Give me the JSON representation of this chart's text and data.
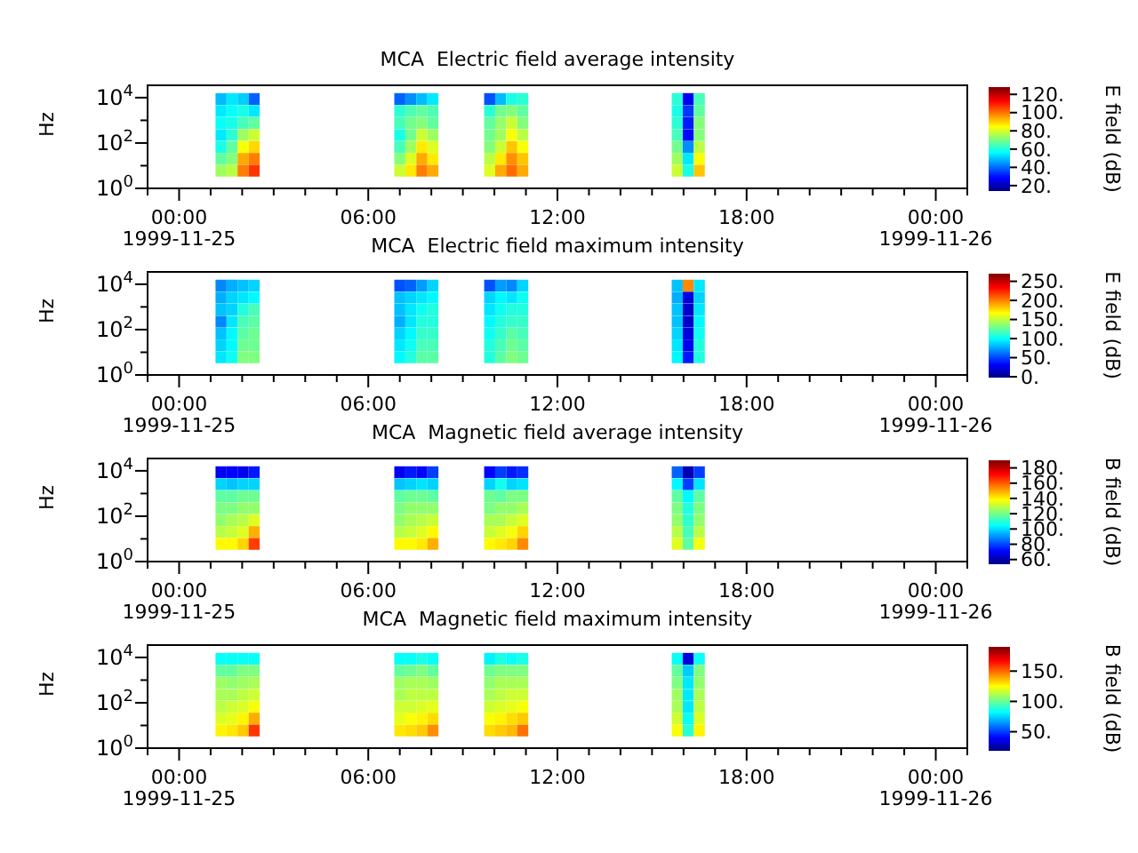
{
  "chart_data": [
    {
      "type": "heatmap",
      "title": "MCA  Electric field average intensity",
      "ylabel": "Hz",
      "clabel": "E field (dB)",
      "log": "y",
      "x": [
        1.33,
        1.68,
        2.03,
        2.38,
        2.73,
        6.65,
        7.0,
        7.35,
        7.7,
        8.05,
        8.4,
        9.5,
        9.85,
        10.2,
        10.55,
        10.9,
        11.25,
        15.45,
        15.8,
        16.15,
        16.5
      ],
      "y": [
        8710,
        2570,
        760,
        224,
        66,
        20,
        6
      ],
      "xlim": [
        -1,
        25
      ],
      "xticks": [
        {
          "value": -1,
          "label": null
        },
        {
          "value": 0,
          "label": "00:00\n1999-11-25"
        },
        {
          "value": 1,
          "label": null
        },
        {
          "value": 2,
          "label": null
        },
        {
          "value": 3,
          "label": null
        },
        {
          "value": 4,
          "label": null
        },
        {
          "value": 5,
          "label": null
        },
        {
          "value": 6,
          "label": "06:00"
        },
        {
          "value": 7,
          "label": null
        },
        {
          "value": 8,
          "label": null
        },
        {
          "value": 9,
          "label": null
        },
        {
          "value": 10,
          "label": null
        },
        {
          "value": 11,
          "label": null
        },
        {
          "value": 12,
          "label": "12:00"
        },
        {
          "value": 13,
          "label": null
        },
        {
          "value": 14,
          "label": null
        },
        {
          "value": 15,
          "label": null
        },
        {
          "value": 16,
          "label": null
        },
        {
          "value": 17,
          "label": null
        },
        {
          "value": 18,
          "label": "18:00"
        },
        {
          "value": 19,
          "label": null
        },
        {
          "value": 20,
          "label": null
        },
        {
          "value": 21,
          "label": null
        },
        {
          "value": 22,
          "label": null
        },
        {
          "value": 23,
          "label": null
        },
        {
          "value": 24,
          "label": "00:00\n1999-11-26"
        },
        {
          "value": 25,
          "label": null
        }
      ],
      "ylim": [
        1,
        35000
      ],
      "yticks": [
        {
          "value": 1,
          "label": "10$^{0}$"
        },
        {
          "value": 10,
          "label": null
        },
        {
          "value": 100,
          "label": "10$^{2}$"
        },
        {
          "value": 1000,
          "label": null
        },
        {
          "value": 10000,
          "label": "10$^{4}$"
        }
      ],
      "clim": [
        15,
        128
      ],
      "cticks": [
        {
          "value": 20,
          "label": "20."
        },
        {
          "value": 40,
          "label": "40."
        },
        {
          "value": 60,
          "label": "60."
        },
        {
          "value": 80,
          "label": "80."
        },
        {
          "value": 100,
          "label": "100."
        },
        {
          "value": 120,
          "label": "120."
        }
      ],
      "cells": [
        [
          50,
          55,
          52,
          40,
          null,
          null,
          40,
          45,
          50,
          55,
          null,
          null,
          38,
          50,
          60,
          62,
          null,
          null,
          62,
          28,
          65
        ],
        [
          55,
          58,
          60,
          55,
          null,
          null,
          62,
          66,
          68,
          66,
          null,
          null,
          62,
          70,
          72,
          68,
          null,
          null,
          60,
          35,
          68
        ],
        [
          58,
          60,
          65,
          68,
          null,
          null,
          65,
          70,
          72,
          68,
          null,
          null,
          68,
          74,
          80,
          72,
          null,
          null,
          62,
          32,
          72
        ],
        [
          55,
          62,
          75,
          80,
          null,
          null,
          60,
          70,
          80,
          75,
          null,
          null,
          70,
          75,
          85,
          78,
          null,
          null,
          65,
          30,
          72
        ],
        [
          60,
          68,
          85,
          90,
          null,
          null,
          65,
          75,
          88,
          82,
          null,
          null,
          72,
          80,
          92,
          85,
          null,
          null,
          70,
          45,
          78
        ],
        [
          68,
          72,
          95,
          100,
          null,
          null,
          72,
          82,
          95,
          88,
          null,
          null,
          78,
          88,
          98,
          92,
          null,
          null,
          75,
          55,
          85
        ],
        [
          75,
          78,
          100,
          108,
          null,
          null,
          80,
          88,
          100,
          95,
          null,
          null,
          82,
          95,
          102,
          95,
          null,
          null,
          80,
          60,
          92
        ]
      ]
    },
    {
      "type": "heatmap",
      "title": "MCA  Electric field maximum intensity",
      "ylabel": "Hz",
      "clabel": "E field (dB)",
      "log": "y",
      "x": [
        1.33,
        1.68,
        2.03,
        2.38,
        2.73,
        6.65,
        7.0,
        7.35,
        7.7,
        8.05,
        8.4,
        9.5,
        9.85,
        10.2,
        10.55,
        10.9,
        11.25,
        15.45,
        15.8,
        16.15,
        16.5
      ],
      "y": [
        8710,
        2570,
        760,
        224,
        66,
        20,
        6
      ],
      "xlim": [
        -1,
        25
      ],
      "xticks": [
        {
          "value": -1,
          "label": null
        },
        {
          "value": 0,
          "label": "00:00\n1999-11-25"
        },
        {
          "value": 1,
          "label": null
        },
        {
          "value": 2,
          "label": null
        },
        {
          "value": 3,
          "label": null
        },
        {
          "value": 4,
          "label": null
        },
        {
          "value": 5,
          "label": null
        },
        {
          "value": 6,
          "label": "06:00"
        },
        {
          "value": 7,
          "label": null
        },
        {
          "value": 8,
          "label": null
        },
        {
          "value": 9,
          "label": null
        },
        {
          "value": 10,
          "label": null
        },
        {
          "value": 11,
          "label": null
        },
        {
          "value": 12,
          "label": "12:00"
        },
        {
          "value": 13,
          "label": null
        },
        {
          "value": 14,
          "label": null
        },
        {
          "value": 15,
          "label": null
        },
        {
          "value": 16,
          "label": null
        },
        {
          "value": 17,
          "label": null
        },
        {
          "value": 18,
          "label": "18:00"
        },
        {
          "value": 19,
          "label": null
        },
        {
          "value": 20,
          "label": null
        },
        {
          "value": 21,
          "label": null
        },
        {
          "value": 22,
          "label": null
        },
        {
          "value": 23,
          "label": null
        },
        {
          "value": 24,
          "label": "00:00\n1999-11-26"
        },
        {
          "value": 25,
          "label": null
        }
      ],
      "ylim": [
        1,
        35000
      ],
      "yticks": [
        {
          "value": 1,
          "label": "10$^{0}$"
        },
        {
          "value": 10,
          "label": null
        },
        {
          "value": 100,
          "label": "10$^{2}$"
        },
        {
          "value": 1000,
          "label": null
        },
        {
          "value": 10000,
          "label": "10$^{4}$"
        }
      ],
      "clim": [
        0,
        270
      ],
      "cticks": [
        {
          "value": 0,
          "label": "0."
        },
        {
          "value": 50,
          "label": "50."
        },
        {
          "value": 100,
          "label": "100."
        },
        {
          "value": 150,
          "label": "150."
        },
        {
          "value": 200,
          "label": "200."
        },
        {
          "value": 250,
          "label": "250."
        }
      ],
      "cells": [
        [
          70,
          80,
          85,
          90,
          null,
          null,
          55,
          60,
          75,
          90,
          null,
          null,
          55,
          75,
          70,
          90,
          null,
          null,
          85,
          200,
          95
        ],
        [
          80,
          90,
          95,
          100,
          null,
          null,
          85,
          90,
          95,
          100,
          null,
          null,
          90,
          100,
          95,
          105,
          null,
          null,
          80,
          25,
          90
        ],
        [
          85,
          90,
          110,
          120,
          null,
          null,
          85,
          95,
          105,
          110,
          null,
          null,
          95,
          105,
          110,
          110,
          null,
          null,
          85,
          20,
          95
        ],
        [
          70,
          95,
          120,
          125,
          null,
          null,
          80,
          95,
          110,
          110,
          null,
          null,
          100,
          110,
          115,
          115,
          null,
          null,
          85,
          20,
          100
        ],
        [
          85,
          100,
          125,
          130,
          null,
          null,
          90,
          100,
          115,
          115,
          null,
          null,
          105,
          115,
          125,
          120,
          null,
          null,
          90,
          25,
          105
        ],
        [
          90,
          100,
          130,
          130,
          null,
          null,
          95,
          105,
          120,
          120,
          null,
          null,
          110,
          120,
          130,
          125,
          null,
          null,
          95,
          30,
          110
        ],
        [
          95,
          105,
          135,
          135,
          null,
          null,
          100,
          110,
          125,
          125,
          null,
          null,
          110,
          125,
          135,
          130,
          null,
          null,
          100,
          40,
          110
        ]
      ]
    },
    {
      "type": "heatmap",
      "title": "MCA  Magnetic field average intensity",
      "ylabel": "Hz",
      "clabel": "B field (dB)",
      "log": "y",
      "x": [
        1.33,
        1.68,
        2.03,
        2.38,
        2.73,
        6.65,
        7.0,
        7.35,
        7.7,
        8.05,
        8.4,
        9.5,
        9.85,
        10.2,
        10.55,
        10.9,
        11.25,
        15.45,
        15.8,
        16.15,
        16.5
      ],
      "y": [
        8710,
        2570,
        760,
        224,
        66,
        20,
        6
      ],
      "xlim": [
        -1,
        25
      ],
      "xticks": [
        {
          "value": -1,
          "label": null
        },
        {
          "value": 0,
          "label": "00:00\n1999-11-25"
        },
        {
          "value": 1,
          "label": null
        },
        {
          "value": 2,
          "label": null
        },
        {
          "value": 3,
          "label": null
        },
        {
          "value": 4,
          "label": null
        },
        {
          "value": 5,
          "label": null
        },
        {
          "value": 6,
          "label": "06:00"
        },
        {
          "value": 7,
          "label": null
        },
        {
          "value": 8,
          "label": null
        },
        {
          "value": 9,
          "label": null
        },
        {
          "value": 10,
          "label": null
        },
        {
          "value": 11,
          "label": null
        },
        {
          "value": 12,
          "label": "12:00"
        },
        {
          "value": 13,
          "label": null
        },
        {
          "value": 14,
          "label": null
        },
        {
          "value": 15,
          "label": null
        },
        {
          "value": 16,
          "label": null
        },
        {
          "value": 17,
          "label": null
        },
        {
          "value": 18,
          "label": "18:00"
        },
        {
          "value": 19,
          "label": null
        },
        {
          "value": 20,
          "label": null
        },
        {
          "value": 21,
          "label": null
        },
        {
          "value": 22,
          "label": null
        },
        {
          "value": 23,
          "label": null
        },
        {
          "value": 24,
          "label": "00:00\n1999-11-26"
        },
        {
          "value": 25,
          "label": null
        }
      ],
      "ylim": [
        1,
        35000
      ],
      "yticks": [
        {
          "value": 1,
          "label": "10$^{0}$"
        },
        {
          "value": 10,
          "label": null
        },
        {
          "value": 100,
          "label": "10$^{2}$"
        },
        {
          "value": 1000,
          "label": null
        },
        {
          "value": 10000,
          "label": "10$^{4}$"
        }
      ],
      "clim": [
        55,
        190
      ],
      "cticks": [
        {
          "value": 60,
          "label": "60."
        },
        {
          "value": 80,
          "label": "80."
        },
        {
          "value": 100,
          "label": "100."
        },
        {
          "value": 120,
          "label": "120."
        },
        {
          "value": 140,
          "label": "140."
        },
        {
          "value": 160,
          "label": "160."
        },
        {
          "value": 180,
          "label": "180."
        }
      ],
      "cells": [
        [
          70,
          72,
          70,
          75,
          null,
          null,
          70,
          75,
          72,
          80,
          null,
          null,
          72,
          80,
          75,
          78,
          null,
          null,
          85,
          62,
          80
        ],
        [
          100,
          98,
          100,
          100,
          null,
          null,
          98,
          100,
          102,
          100,
          null,
          null,
          100,
          108,
          100,
          102,
          null,
          null,
          105,
          80,
          102
        ],
        [
          118,
          118,
          120,
          120,
          null,
          null,
          118,
          120,
          120,
          118,
          null,
          null,
          120,
          118,
          122,
          122,
          null,
          null,
          118,
          105,
          118
        ],
        [
          122,
          122,
          125,
          125,
          null,
          null,
          122,
          125,
          125,
          125,
          null,
          null,
          122,
          125,
          125,
          128,
          null,
          null,
          122,
          110,
          122
        ],
        [
          125,
          128,
          130,
          135,
          null,
          null,
          125,
          128,
          130,
          132,
          null,
          null,
          128,
          128,
          132,
          135,
          null,
          null,
          125,
          112,
          125
        ],
        [
          130,
          132,
          135,
          150,
          null,
          null,
          130,
          132,
          135,
          140,
          null,
          null,
          132,
          135,
          138,
          145,
          null,
          null,
          130,
          115,
          130
        ],
        [
          140,
          140,
          145,
          165,
          null,
          null,
          140,
          140,
          142,
          150,
          null,
          null,
          140,
          142,
          145,
          155,
          null,
          null,
          135,
          118,
          138
        ]
      ]
    },
    {
      "type": "heatmap",
      "title": "MCA  Magnetic field maximum intensity",
      "ylabel": "Hz",
      "clabel": "B field (dB)",
      "log": "y",
      "x": [
        1.33,
        1.68,
        2.03,
        2.38,
        2.73,
        6.65,
        7.0,
        7.35,
        7.7,
        8.05,
        8.4,
        9.5,
        9.85,
        10.2,
        10.55,
        10.9,
        11.25,
        15.45,
        15.8,
        16.15,
        16.5
      ],
      "y": [
        8710,
        2570,
        760,
        224,
        66,
        20,
        6
      ],
      "xlim": [
        -1,
        25
      ],
      "xticks": [
        {
          "value": -1,
          "label": null
        },
        {
          "value": 0,
          "label": "00:00\n1999-11-25"
        },
        {
          "value": 1,
          "label": null
        },
        {
          "value": 2,
          "label": null
        },
        {
          "value": 3,
          "label": null
        },
        {
          "value": 4,
          "label": null
        },
        {
          "value": 5,
          "label": null
        },
        {
          "value": 6,
          "label": "06:00"
        },
        {
          "value": 7,
          "label": null
        },
        {
          "value": 8,
          "label": null
        },
        {
          "value": 9,
          "label": null
        },
        {
          "value": 10,
          "label": null
        },
        {
          "value": 11,
          "label": null
        },
        {
          "value": 12,
          "label": "12:00"
        },
        {
          "value": 13,
          "label": null
        },
        {
          "value": 14,
          "label": null
        },
        {
          "value": 15,
          "label": null
        },
        {
          "value": 16,
          "label": null
        },
        {
          "value": 17,
          "label": null
        },
        {
          "value": 18,
          "label": "18:00"
        },
        {
          "value": 19,
          "label": null
        },
        {
          "value": 20,
          "label": null
        },
        {
          "value": 21,
          "label": null
        },
        {
          "value": 22,
          "label": null
        },
        {
          "value": 23,
          "label": null
        },
        {
          "value": 24,
          "label": "00:00\n1999-11-26"
        },
        {
          "value": 25,
          "label": null
        }
      ],
      "ylim": [
        1,
        35000
      ],
      "yticks": [
        {
          "value": 1,
          "label": "10$^{0}$"
        },
        {
          "value": 10,
          "label": null
        },
        {
          "value": 100,
          "label": "10$^{2}$"
        },
        {
          "value": 1000,
          "label": null
        },
        {
          "value": 10000,
          "label": "10$^{4}$"
        }
      ],
      "clim": [
        20,
        190
      ],
      "cticks": [
        {
          "value": 50,
          "label": "50."
        },
        {
          "value": 100,
          "label": "100."
        },
        {
          "value": 150,
          "label": "150."
        }
      ],
      "cells": [
        [
          85,
          85,
          85,
          85,
          null,
          null,
          85,
          85,
          88,
          85,
          null,
          null,
          82,
          88,
          85,
          88,
          null,
          null,
          85,
          35,
          85
        ],
        [
          100,
          100,
          105,
          105,
          null,
          null,
          100,
          102,
          105,
          100,
          null,
          null,
          102,
          105,
          105,
          105,
          null,
          null,
          100,
          75,
          105
        ],
        [
          110,
          108,
          110,
          112,
          null,
          null,
          110,
          112,
          112,
          110,
          null,
          null,
          108,
          112,
          112,
          112,
          null,
          null,
          105,
          80,
          108
        ],
        [
          112,
          112,
          115,
          118,
          null,
          null,
          112,
          115,
          115,
          115,
          null,
          null,
          112,
          115,
          118,
          118,
          null,
          null,
          110,
          80,
          112
        ],
        [
          115,
          118,
          120,
          125,
          null,
          null,
          118,
          118,
          120,
          122,
          null,
          null,
          118,
          120,
          122,
          125,
          null,
          null,
          112,
          80,
          115
        ],
        [
          120,
          122,
          128,
          140,
          null,
          null,
          122,
          125,
          128,
          132,
          null,
          null,
          125,
          128,
          132,
          135,
          null,
          null,
          118,
          85,
          120
        ],
        [
          128,
          130,
          135,
          160,
          null,
          null,
          130,
          132,
          135,
          145,
          null,
          null,
          132,
          135,
          138,
          150,
          null,
          null,
          125,
          90,
          128
        ]
      ]
    }
  ]
}
